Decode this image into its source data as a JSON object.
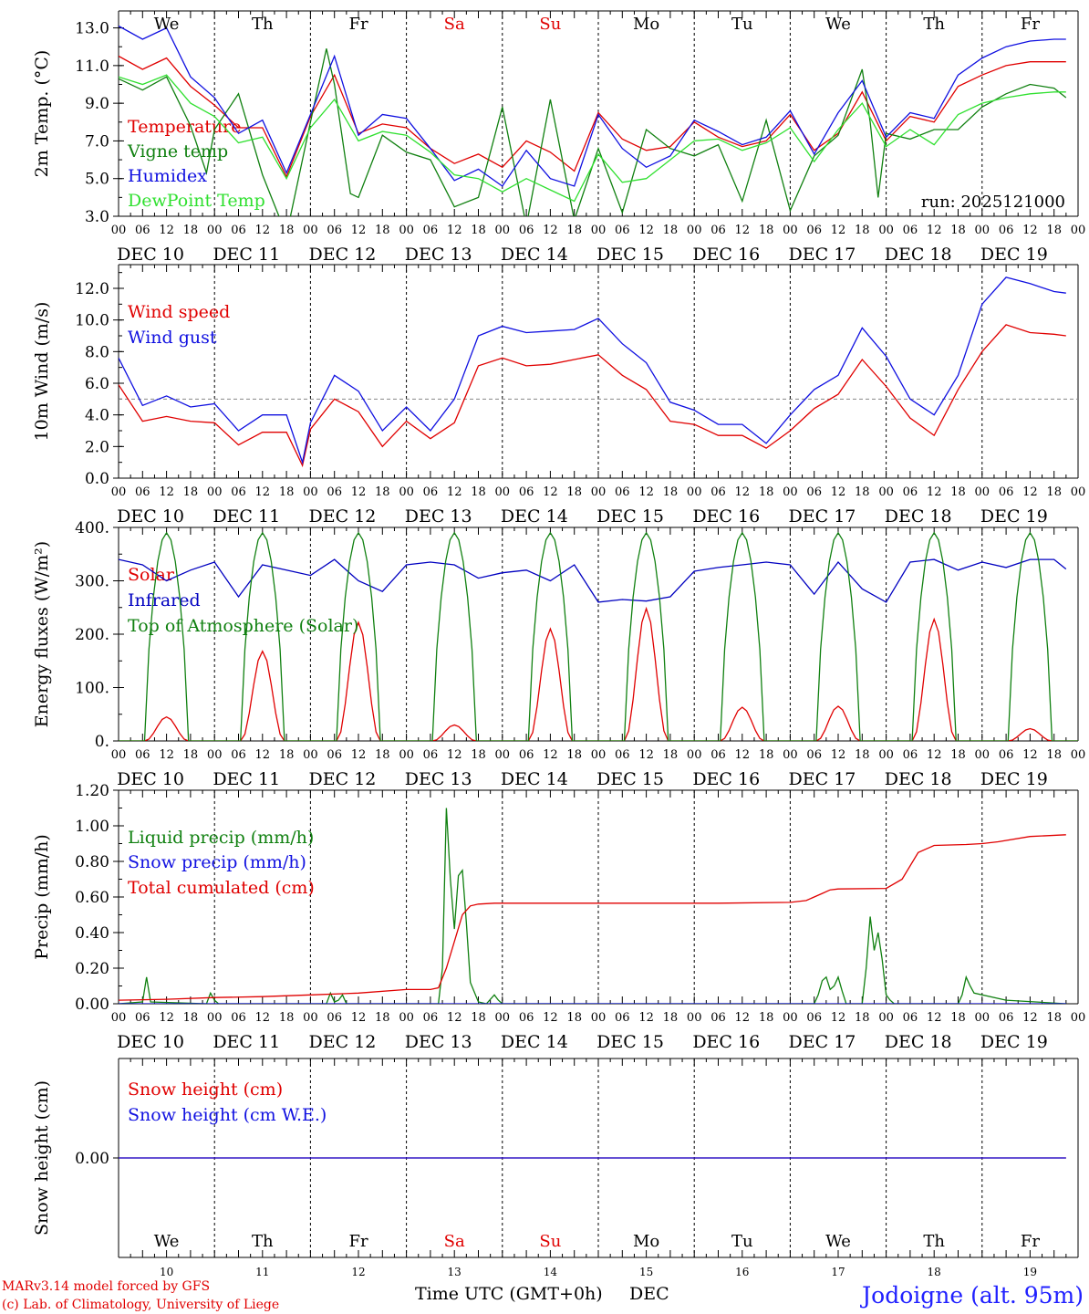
{
  "chart_data": [
    {
      "type": "line",
      "ylabel": "2m Temp. (°C)",
      "ylim": [
        3,
        13.9
      ],
      "yticks": [
        "3.0",
        "5.0",
        "7.0",
        "9.0",
        "11.0",
        "13.0"
      ],
      "run_label": "run: 2025121000",
      "x_unit": "hours since 2025-12-10 00 UTC",
      "series": [
        {
          "name": "Temperature",
          "color": "#e00000",
          "x": [
            0,
            6,
            12,
            18,
            24,
            30,
            36,
            42,
            48,
            54,
            60,
            66,
            72,
            78,
            84,
            90,
            96,
            102,
            108,
            114,
            120,
            126,
            132,
            138,
            144,
            150,
            156,
            162,
            168,
            174,
            180,
            186,
            192,
            198,
            204,
            210,
            216,
            222,
            228,
            234,
            237
          ],
          "y": [
            11.5,
            10.8,
            11.4,
            9.9,
            8.9,
            7.7,
            7.7,
            5.1,
            8.3,
            10.5,
            7.4,
            7.9,
            7.7,
            6.6,
            5.8,
            6.3,
            5.6,
            7.0,
            6.4,
            5.4,
            8.5,
            7.1,
            6.5,
            6.7,
            8.0,
            7.2,
            6.7,
            7.0,
            8.4,
            6.5,
            7.4,
            9.6,
            7.0,
            8.3,
            8.0,
            9.9,
            10.5,
            11.0,
            11.2,
            11.2,
            11.2
          ]
        },
        {
          "name": "Vigne temp",
          "color": "#108010",
          "x": [
            0,
            6,
            12,
            18,
            22,
            24,
            30,
            36,
            42,
            48,
            52,
            54,
            58,
            60,
            66,
            72,
            78,
            84,
            90,
            96,
            102,
            108,
            114,
            120,
            126,
            132,
            138,
            144,
            150,
            156,
            162,
            168,
            174,
            180,
            186,
            188,
            190,
            192,
            198,
            204,
            210,
            216,
            222,
            228,
            234,
            237
          ],
          "y": [
            10.3,
            9.7,
            10.4,
            7.8,
            5.3,
            7.6,
            9.5,
            5.2,
            2.0,
            8.0,
            11.9,
            10.0,
            4.2,
            4.0,
            7.3,
            6.4,
            6.0,
            3.5,
            4.0,
            8.8,
            2.5,
            9.2,
            2.8,
            6.6,
            3.2,
            7.6,
            6.6,
            6.2,
            6.8,
            3.8,
            8.1,
            3.3,
            6.2,
            7.3,
            10.8,
            8.0,
            4.0,
            7.4,
            7.1,
            7.6,
            7.6,
            8.8,
            9.5,
            10.0,
            9.8,
            9.3
          ]
        },
        {
          "name": "Humidex",
          "color": "#1010e0",
          "x": [
            0,
            6,
            12,
            18,
            24,
            30,
            36,
            42,
            48,
            54,
            60,
            66,
            72,
            78,
            84,
            90,
            96,
            102,
            108,
            114,
            120,
            126,
            132,
            138,
            144,
            150,
            156,
            162,
            168,
            174,
            180,
            186,
            192,
            198,
            204,
            210,
            216,
            222,
            228,
            234,
            237
          ],
          "y": [
            13.1,
            12.4,
            13.0,
            10.4,
            9.3,
            7.4,
            8.1,
            5.3,
            8.4,
            11.5,
            7.3,
            8.4,
            8.2,
            6.6,
            4.9,
            5.5,
            4.6,
            6.5,
            5.0,
            4.6,
            8.4,
            6.6,
            5.6,
            6.2,
            8.1,
            7.5,
            6.8,
            7.2,
            8.6,
            6.3,
            8.5,
            10.2,
            7.2,
            8.5,
            8.2,
            10.5,
            11.4,
            12.0,
            12.3,
            12.4,
            12.4
          ]
        },
        {
          "name": "DewPoint Temp",
          "color": "#30e030",
          "x": [
            0,
            6,
            12,
            18,
            24,
            30,
            36,
            42,
            48,
            54,
            60,
            66,
            72,
            78,
            84,
            90,
            96,
            102,
            108,
            114,
            120,
            126,
            132,
            138,
            144,
            150,
            156,
            162,
            168,
            174,
            180,
            186,
            192,
            198,
            204,
            210,
            216,
            222,
            228,
            234,
            237
          ],
          "y": [
            10.4,
            10.0,
            10.5,
            9.0,
            8.3,
            6.9,
            7.2,
            5.0,
            7.7,
            9.2,
            7.0,
            7.5,
            7.3,
            6.4,
            5.2,
            5.0,
            4.3,
            5.0,
            4.4,
            3.8,
            6.3,
            4.8,
            5.0,
            6.0,
            7.0,
            7.1,
            6.5,
            6.9,
            7.7,
            5.9,
            7.6,
            9.0,
            6.7,
            7.6,
            6.8,
            8.4,
            9.0,
            9.3,
            9.5,
            9.6,
            9.6
          ]
        }
      ]
    },
    {
      "type": "line",
      "ylabel": "10m Wind (m/s)",
      "ylim": [
        0,
        13.5
      ],
      "yticks": [
        "0.0",
        "2.0",
        "4.0",
        "6.0",
        "8.0",
        "10.0",
        "12.0"
      ],
      "reference_line": 5,
      "x_unit": "hours since 2025-12-10 00 UTC",
      "series": [
        {
          "name": "Wind speed",
          "color": "#e00000",
          "x": [
            0,
            6,
            12,
            18,
            24,
            30,
            36,
            42,
            46,
            48,
            54,
            60,
            66,
            72,
            78,
            84,
            90,
            96,
            102,
            108,
            114,
            120,
            126,
            132,
            138,
            144,
            150,
            156,
            162,
            168,
            174,
            180,
            186,
            192,
            198,
            204,
            210,
            216,
            222,
            228,
            234,
            237
          ],
          "y": [
            5.9,
            3.6,
            3.9,
            3.6,
            3.5,
            2.1,
            2.9,
            2.9,
            0.8,
            3.1,
            5.0,
            4.2,
            2.0,
            3.6,
            2.5,
            3.5,
            7.1,
            7.6,
            7.1,
            7.2,
            7.5,
            7.8,
            6.5,
            5.6,
            3.6,
            3.4,
            2.7,
            2.7,
            1.9,
            3.0,
            4.4,
            5.3,
            7.5,
            5.8,
            3.8,
            2.7,
            5.6,
            8.0,
            9.7,
            9.2,
            9.1,
            9.0
          ]
        },
        {
          "name": "Wind gust",
          "color": "#1010e0",
          "x": [
            0,
            6,
            12,
            18,
            24,
            30,
            36,
            42,
            46,
            48,
            54,
            60,
            66,
            72,
            78,
            84,
            90,
            96,
            102,
            108,
            114,
            120,
            126,
            132,
            138,
            144,
            150,
            156,
            162,
            168,
            174,
            180,
            186,
            192,
            198,
            204,
            210,
            216,
            222,
            228,
            234,
            237
          ],
          "y": [
            7.6,
            4.6,
            5.2,
            4.5,
            4.7,
            3.0,
            4.0,
            4.0,
            1.0,
            3.5,
            6.5,
            5.5,
            3.0,
            4.5,
            3.0,
            5.0,
            9.0,
            9.6,
            9.2,
            9.3,
            9.4,
            10.1,
            8.5,
            7.3,
            4.8,
            4.3,
            3.4,
            3.4,
            2.2,
            4.0,
            5.6,
            6.5,
            9.5,
            7.7,
            5.0,
            4.0,
            6.5,
            11.0,
            12.7,
            12.3,
            11.8,
            11.7
          ]
        }
      ]
    },
    {
      "type": "line",
      "ylabel": "Energy fluxes (W/m²)",
      "ylim": [
        0,
        400
      ],
      "yticks": [
        "0.",
        "100.",
        "200.",
        "300.",
        "400."
      ],
      "x_unit": "hours since 2025-12-10 00 UTC",
      "series": [
        {
          "name": "Solar",
          "color": "#e00000",
          "peaks": [
            45,
            168,
            222,
            30,
            210,
            248,
            63,
            65,
            228,
            23
          ]
        },
        {
          "name": "Infrared",
          "color": "#0000c0",
          "x": [
            0,
            6,
            12,
            18,
            24,
            30,
            36,
            42,
            48,
            54,
            60,
            66,
            72,
            78,
            84,
            90,
            96,
            102,
            108,
            114,
            120,
            126,
            132,
            138,
            144,
            150,
            156,
            162,
            168,
            174,
            180,
            186,
            192,
            198,
            204,
            210,
            216,
            222,
            228,
            234,
            237
          ],
          "y": [
            340,
            330,
            300,
            320,
            335,
            270,
            330,
            320,
            310,
            340,
            300,
            280,
            330,
            335,
            330,
            305,
            315,
            320,
            300,
            330,
            260,
            265,
            262,
            270,
            318,
            325,
            330,
            335,
            330,
            275,
            335,
            285,
            260,
            335,
            340,
            320,
            335,
            325,
            340,
            340,
            322
          ]
        },
        {
          "name": "Top of Atmosphere (Solar)",
          "color": "#108010",
          "peak": 390
        }
      ]
    },
    {
      "type": "line",
      "ylabel": "Precip (mm/h)",
      "ylim": [
        0,
        1.2
      ],
      "yticks": [
        "0.00",
        "0.20",
        "0.40",
        "0.60",
        "0.80",
        "1.00",
        "1.20"
      ],
      "x_unit": "hours since 2025-12-10 00 UTC",
      "series": [
        {
          "name": "Liquid precip (mm/h)",
          "color": "#108010",
          "x": [
            0,
            6,
            7,
            8,
            22,
            23,
            24,
            25,
            52,
            53,
            54,
            55,
            56,
            57,
            58,
            80,
            81,
            82,
            83,
            84,
            85,
            86,
            87,
            88,
            90,
            92,
            94,
            95,
            96,
            97,
            174,
            175,
            176,
            177,
            178,
            179,
            180,
            181,
            182,
            186,
            187,
            188,
            189,
            190,
            191,
            192,
            193,
            194,
            198,
            210,
            211,
            212,
            213,
            214,
            222,
            237
          ],
          "y": [
            0,
            0.01,
            0.15,
            0.01,
            0.0,
            0.06,
            0.02,
            0.0,
            0.0,
            0.06,
            0.01,
            0.02,
            0.05,
            0.0,
            0.0,
            0.0,
            0.2,
            1.1,
            0.7,
            0.42,
            0.72,
            0.75,
            0.45,
            0.12,
            0.01,
            0.0,
            0.05,
            0.02,
            0.0,
            0.0,
            0.0,
            0.05,
            0.13,
            0.15,
            0.08,
            0.1,
            0.15,
            0.07,
            0.0,
            0.0,
            0.2,
            0.49,
            0.3,
            0.4,
            0.25,
            0.05,
            0.02,
            0.0,
            0.0,
            0.0,
            0.05,
            0.15,
            0.1,
            0.06,
            0.02,
            0.0
          ]
        },
        {
          "name": "Snow precip (mm/h)",
          "color": "#1010e0",
          "x": [
            0,
            237
          ],
          "y": [
            0,
            0
          ]
        },
        {
          "name": "Total cumulated (cm)",
          "color": "#e00000",
          "x": [
            0,
            12,
            24,
            36,
            48,
            60,
            72,
            78,
            80,
            82,
            84,
            86,
            88,
            90,
            94,
            100,
            120,
            150,
            168,
            172,
            176,
            178,
            180,
            192,
            196,
            200,
            204,
            212,
            216,
            220,
            228,
            237
          ],
          "y": [
            0.02,
            0.025,
            0.035,
            0.04,
            0.05,
            0.06,
            0.08,
            0.08,
            0.09,
            0.2,
            0.35,
            0.5,
            0.55,
            0.56,
            0.565,
            0.565,
            0.565,
            0.565,
            0.57,
            0.58,
            0.62,
            0.64,
            0.645,
            0.648,
            0.7,
            0.85,
            0.89,
            0.895,
            0.9,
            0.91,
            0.94,
            0.95
          ]
        }
      ]
    },
    {
      "type": "line",
      "ylabel": "Snow height (cm)",
      "ylim": [
        -1,
        1
      ],
      "yticks": [
        "0.00"
      ],
      "series": [
        {
          "name": "Snow height (cm)",
          "color": "#e00000",
          "x": [
            0,
            237
          ],
          "y": [
            0,
            0
          ]
        },
        {
          "name": "Snow height (cm W.E.)",
          "color": "#1010e0",
          "x": [
            0,
            237
          ],
          "y": [
            0,
            0
          ]
        }
      ]
    }
  ],
  "hour_ticks": [
    "00",
    "06",
    "12",
    "18"
  ],
  "end_tick": "00",
  "date_labels": [
    "DEC 10",
    "DEC 11",
    "DEC 12",
    "DEC 13",
    "DEC 14",
    "DEC 15",
    "DEC 16",
    "DEC 17",
    "DEC 18",
    "DEC 19"
  ],
  "weekdays": [
    "We",
    "Th",
    "Fr",
    "Sa",
    "Su",
    "Mo",
    "Tu",
    "We",
    "Th",
    "Fr"
  ],
  "weekend_indices": [
    3,
    4
  ],
  "day_numbers": [
    "10",
    "11",
    "12",
    "13",
    "14",
    "15",
    "16",
    "17",
    "18",
    "19"
  ],
  "x_axis_title": "Time UTC (GMT+0h)",
  "x_axis_month": "DEC",
  "footer": {
    "model_line": "MARv3.14 model forced by GFS",
    "copyright_line": "(c) Lab. of Climatology, University of Liege",
    "station": "Jodoigne (alt. 95m)"
  },
  "colors": {
    "red": "#e00000",
    "green": "#108010",
    "blue": "#1010e0",
    "light_green": "#30e030",
    "dark_blue": "#0000c0",
    "weekend": "#e00000",
    "station": "#2020ff"
  }
}
